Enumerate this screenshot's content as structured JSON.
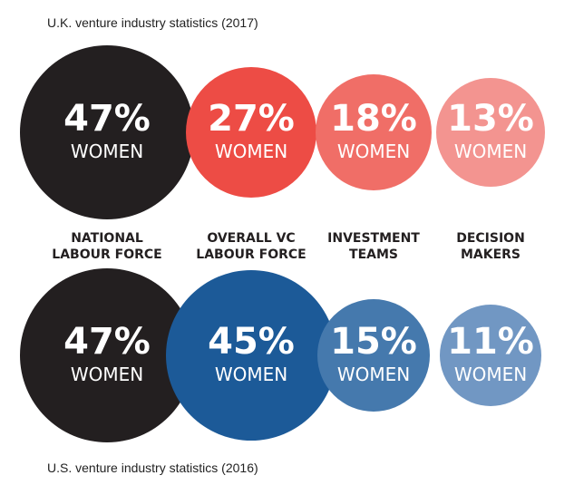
{
  "chart_data": [
    {
      "type": "bubble",
      "title": "U.K. venture industry statistics (2017)",
      "categories": [
        [
          "NATIONAL",
          "LABOUR FORCE"
        ],
        [
          "OVERALL VC",
          "LABOUR FORCE"
        ],
        [
          "INVESTMENT",
          "TEAMS"
        ],
        [
          "DECISION",
          "MAKERS"
        ]
      ],
      "values": [
        47,
        27,
        18,
        13
      ],
      "value_labels": [
        "47%",
        "27%",
        "18%",
        "13%"
      ],
      "sublabel": "WOMEN",
      "colors": [
        "#231f20",
        "#ed4c45",
        "#f06e67",
        "#f39490"
      ]
    },
    {
      "type": "bubble",
      "title": "U.S. venture industry statistics (2016)",
      "categories": [
        [
          "NATIONAL",
          "LABOUR FORCE"
        ],
        [
          "OVERALL VC",
          "LABOUR FORCE"
        ],
        [
          "INVESTMENT",
          "TEAMS"
        ],
        [
          "DECISION",
          "MAKERS"
        ]
      ],
      "values": [
        47,
        45,
        15,
        11
      ],
      "value_labels": [
        "47%",
        "45%",
        "15%",
        "11%"
      ],
      "sublabel": "WOMEN",
      "colors": [
        "#231f20",
        "#1c5a98",
        "#4579ad",
        "#7197c3"
      ]
    }
  ]
}
